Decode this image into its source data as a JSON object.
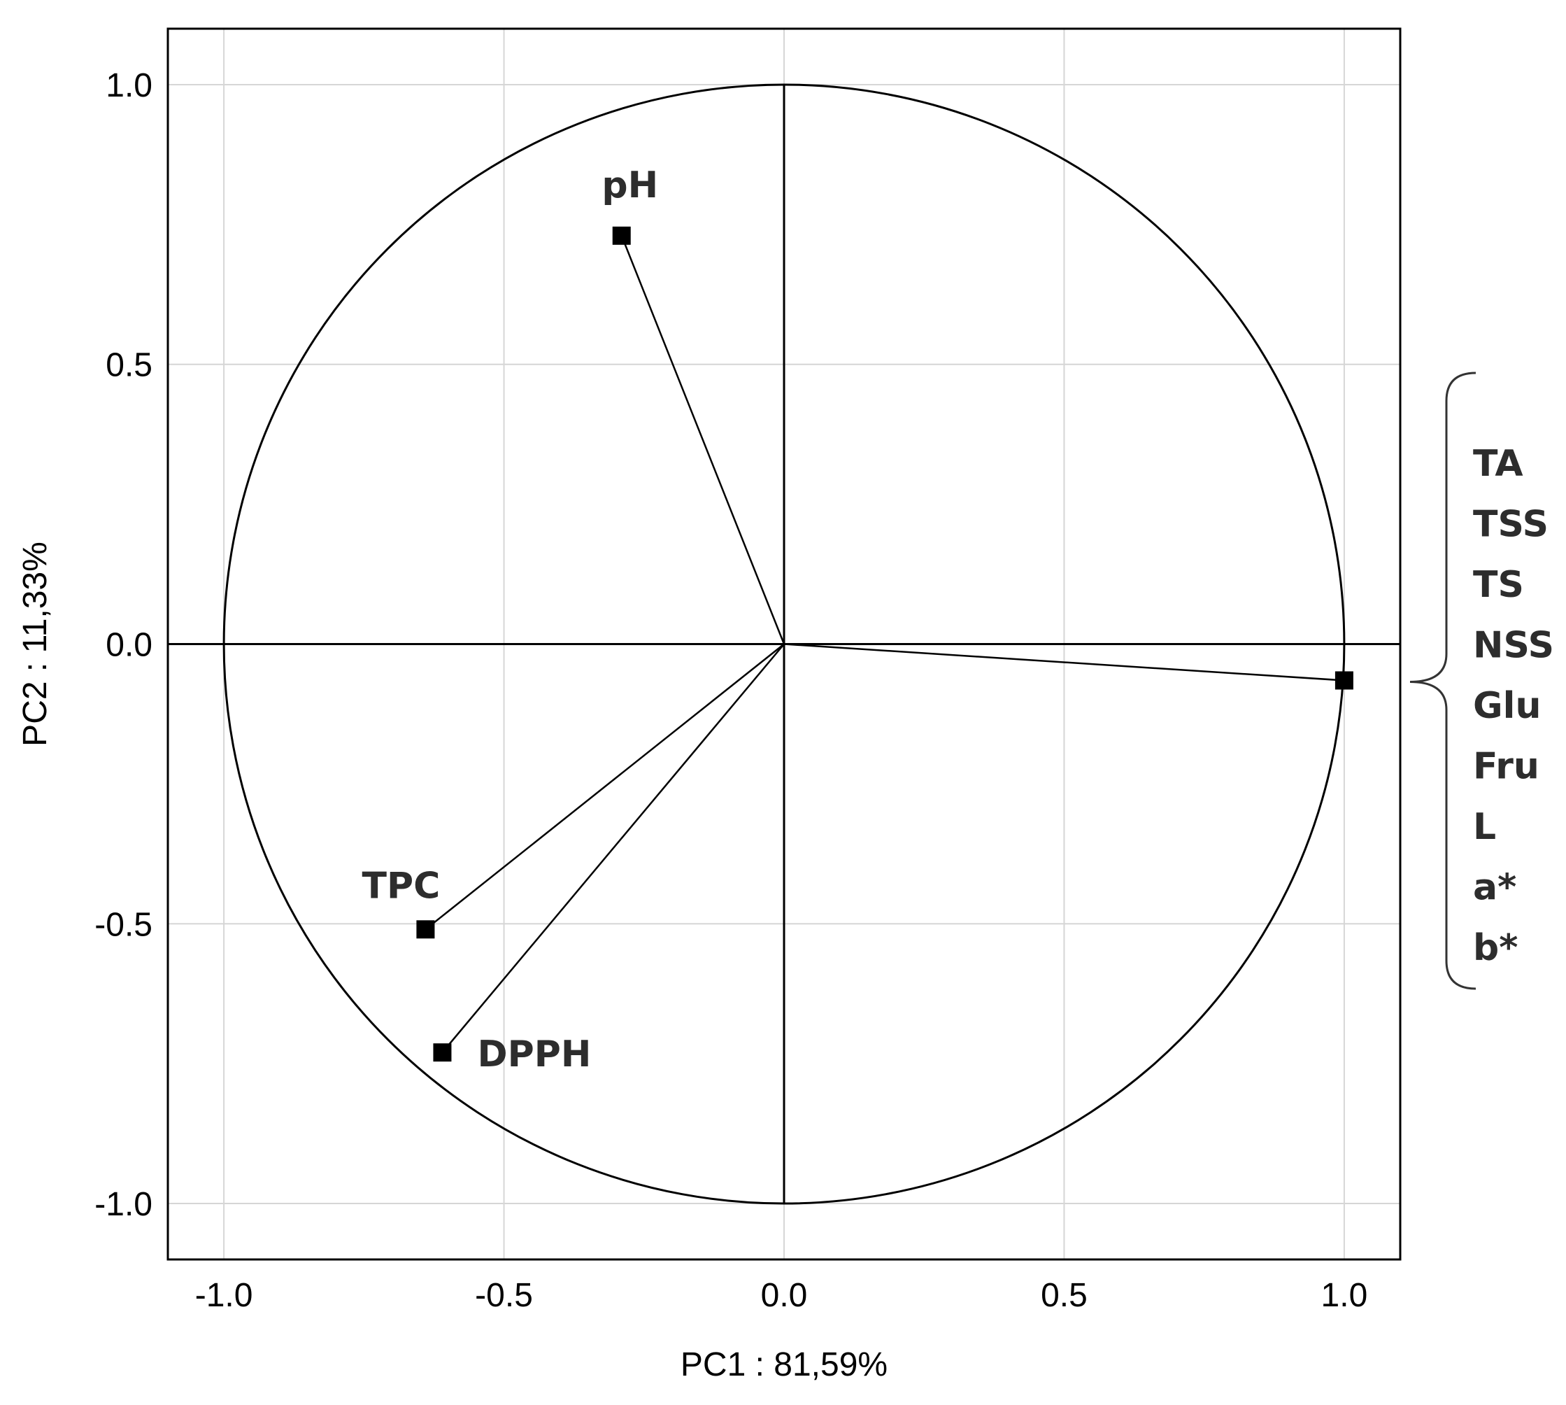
{
  "chart_data": {
    "type": "scatter",
    "subtype": "pca-correlation-circle",
    "xlabel": "PC1 : 81,59%",
    "ylabel": "PC2 : 11,33%",
    "xlim": [
      -1.1,
      1.1
    ],
    "ylim": [
      -1.1,
      1.1
    ],
    "xticks": [
      -1.0,
      -0.5,
      0.0,
      0.5,
      1.0
    ],
    "yticks": [
      -1.0,
      -0.5,
      0.0,
      0.5,
      1.0
    ],
    "xtick_labels": [
      "-1.0",
      "-0.5",
      "0.0",
      "0.5",
      "1.0"
    ],
    "ytick_labels": [
      "-1.0",
      "-0.5",
      "0.0",
      "0.5",
      "1.0"
    ],
    "grid": true,
    "unit_circle": true,
    "points": [
      {
        "label": "pH",
        "x": -0.29,
        "y": 0.73
      },
      {
        "label": "TPC",
        "x": -0.64,
        "y": -0.51
      },
      {
        "label": "DPPH",
        "x": -0.61,
        "y": -0.73
      },
      {
        "label": "",
        "x": 1.0,
        "y": -0.065
      }
    ],
    "group": {
      "point_index": 3,
      "labels": [
        "TA",
        "TSS",
        "TS",
        "NSS",
        "Glu",
        "Fru",
        "L",
        "a*",
        "b*"
      ]
    }
  }
}
